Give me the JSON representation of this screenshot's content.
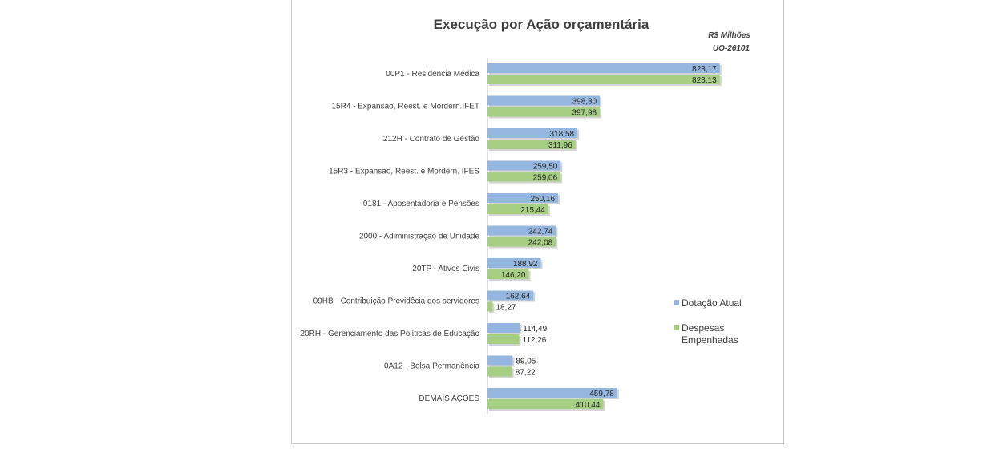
{
  "chart_data": {
    "type": "bar",
    "orientation": "horizontal",
    "title": "Execução por Ação orçamentária",
    "subtitle_lines": [
      "R$ Milhões",
      "UO-26101"
    ],
    "categories": [
      "00P1 - Residencia Médica",
      "15R4 - Expansão, Reest. e Mordern.IFET",
      "212H - Contrato de Gestão",
      "15R3 - Expansão, Reest. e Mordern. IFES",
      "0181 - Aposentadoria e Pensões",
      "2000 - Adiministração de Unidade",
      "20TP - Ativos Civis",
      "09HB - Contribuição Previdêcia dos servidores",
      "20RH - Gerenciamento das Políticas de Educação",
      "0A12 - Bolsa Permanência",
      "DEMAIS AÇÕES"
    ],
    "series": [
      {
        "name": "Dotação Atual",
        "color": "#95b6de",
        "values": [
          823.17,
          398.3,
          318.58,
          259.5,
          250.16,
          242.74,
          188.92,
          162.64,
          114.49,
          89.05,
          459.78
        ],
        "labels": [
          "823,17",
          "398,30",
          "318,58",
          "259,50",
          "250,16",
          "242,74",
          "188,92",
          "162,64",
          "114,49",
          "89,05",
          "459,78"
        ]
      },
      {
        "name": "Despesas Empenhadas",
        "legend_lines": [
          "Despesas",
          "Empenhadas"
        ],
        "color": "#a6cf84",
        "values": [
          823.13,
          397.98,
          311.96,
          259.06,
          215.44,
          242.08,
          146.2,
          18.27,
          112.26,
          87.22,
          410.44
        ],
        "labels": [
          "823,13",
          "397,98",
          "311,96",
          "259,06",
          "215,44",
          "242,08",
          "146,20",
          "18,27",
          "112,26",
          "87,22",
          "410,44"
        ]
      }
    ],
    "xlim": [
      0,
      1000
    ],
    "legend_position": "right"
  }
}
